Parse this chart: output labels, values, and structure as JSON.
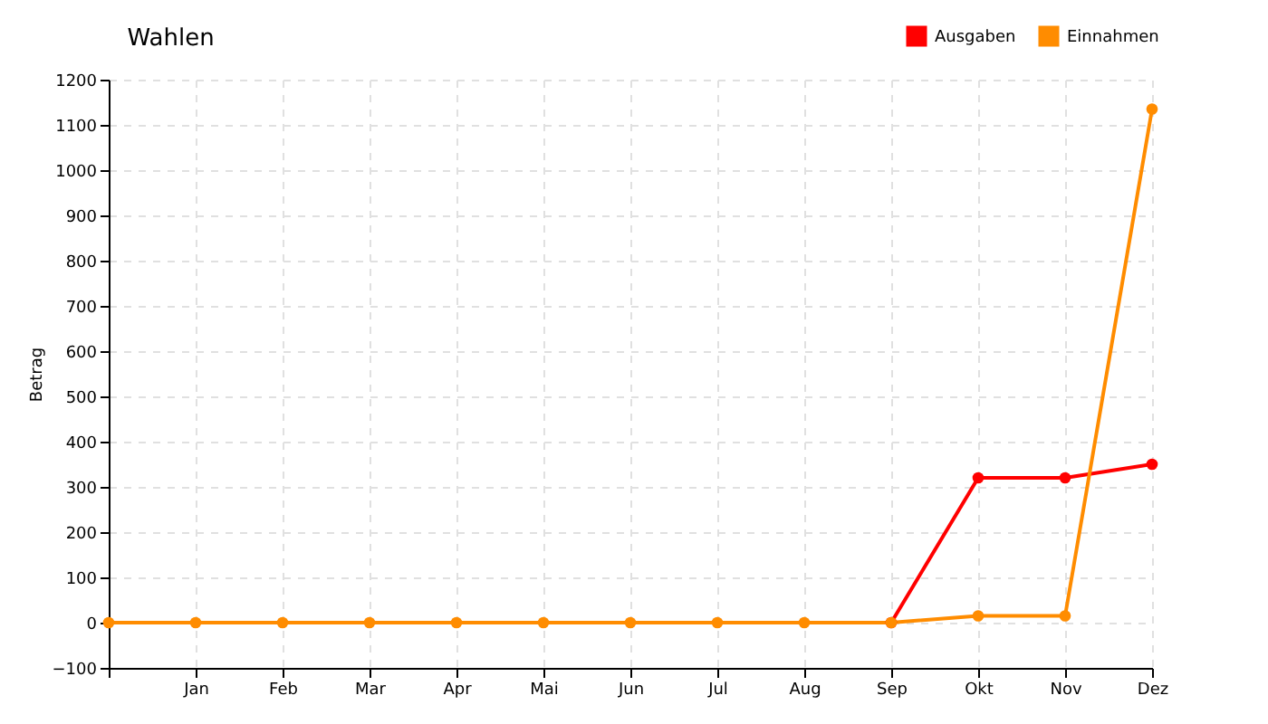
{
  "chart_data": {
    "type": "line",
    "title": "Wahlen",
    "ylabel": "Betrag",
    "categories": [
      null,
      "Jan",
      "Feb",
      "Mar",
      "Apr",
      "Mai",
      "Jun",
      "Jul",
      "Aug",
      "Sep",
      "Okt",
      "Nov",
      "Dez"
    ],
    "series": [
      {
        "name": "Ausgaben",
        "color": "#ff0000",
        "values": [
          null,
          null,
          null,
          null,
          null,
          null,
          null,
          null,
          null,
          0,
          320,
          320,
          350
        ]
      },
      {
        "name": "Einnahmen",
        "color": "#ff8c00",
        "values": [
          0,
          0,
          0,
          0,
          0,
          0,
          0,
          0,
          0,
          0,
          15,
          15,
          1135
        ]
      }
    ],
    "ylim": [
      -100,
      1200
    ],
    "yticks": [
      -100,
      0,
      100,
      200,
      300,
      400,
      500,
      600,
      700,
      800,
      900,
      1000,
      1100,
      1200
    ],
    "grid": true,
    "legend": "top right",
    "marker": "circle",
    "line_style": "solid"
  }
}
